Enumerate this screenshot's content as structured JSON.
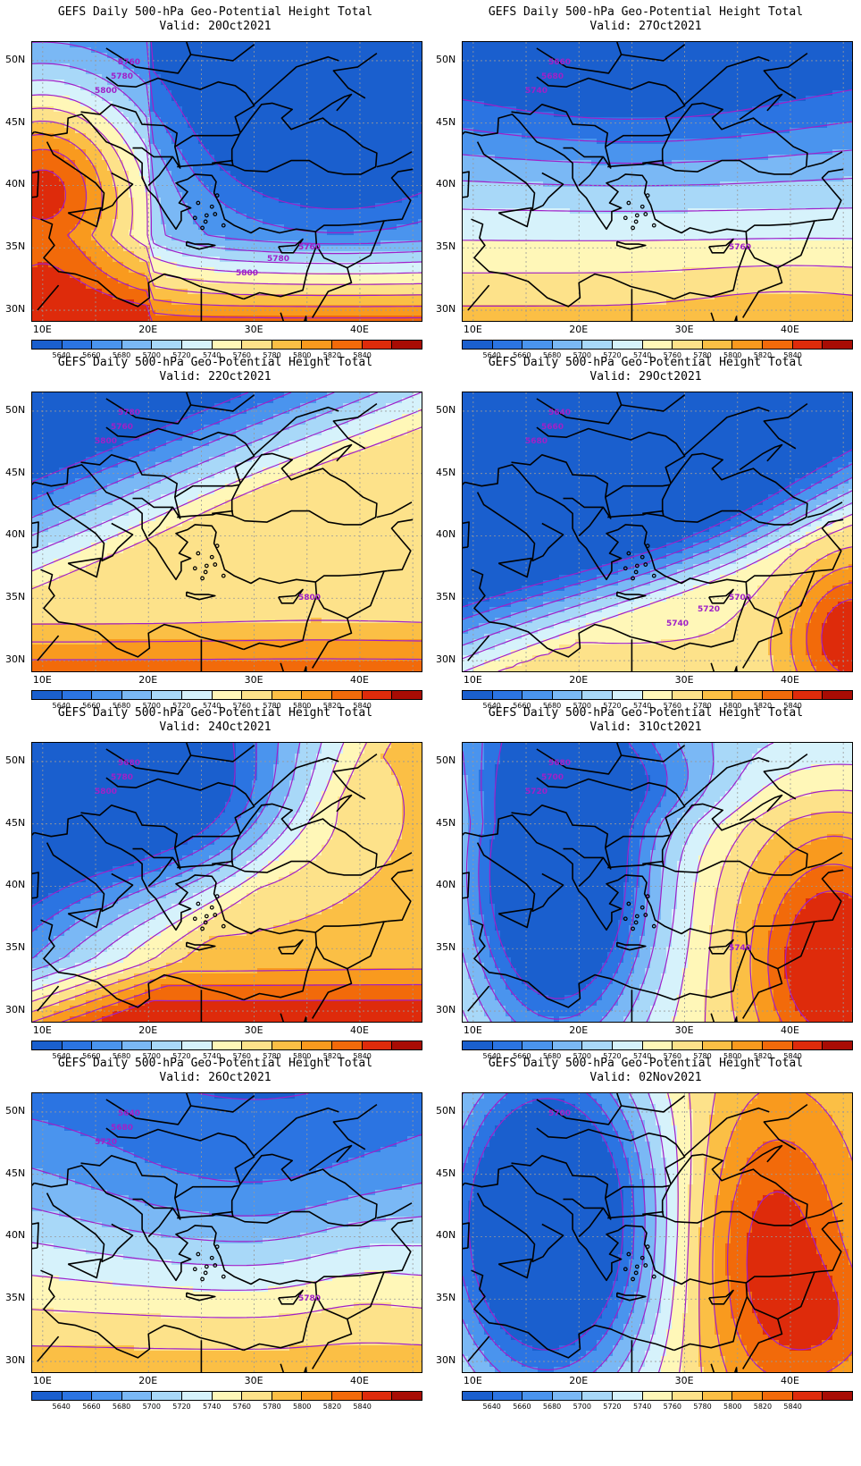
{
  "panels": [
    {
      "title": "GEFS Daily 500-hPa Geo-Potential Height Total",
      "valid": "Valid: 20Oct2021",
      "contour_labels": [
        "5760",
        "5780",
        "5800",
        "5760",
        "5780",
        "5800"
      ],
      "pattern": "ridge-west"
    },
    {
      "title": "GEFS Daily 500-hPa Geo-Potential Height Total",
      "valid": "Valid: 27Oct2021",
      "contour_labels": [
        "5660",
        "5680",
        "5740",
        "5760"
      ],
      "pattern": "trough-north"
    },
    {
      "title": "GEFS Daily 500-hPa Geo-Potential Height Total",
      "valid": "Valid: 22Oct2021",
      "contour_labels": [
        "5780",
        "5760",
        "5800",
        "5800"
      ],
      "pattern": "ridge-broad"
    },
    {
      "title": "GEFS Daily 500-hPa Geo-Potential Height Total",
      "valid": "Valid: 29Oct2021",
      "contour_labels": [
        "5640",
        "5660",
        "5680",
        "5700",
        "5720",
        "5740"
      ],
      "pattern": "trough-deep"
    },
    {
      "title": "GEFS Daily 500-hPa Geo-Potential Height Total",
      "valid": "Valid: 24Oct2021",
      "contour_labels": [
        "5680",
        "5780",
        "5800"
      ],
      "pattern": "trough-diagonal"
    },
    {
      "title": "GEFS Daily 500-hPa Geo-Potential Height Total",
      "valid": "Valid: 31Oct2021",
      "contour_labels": [
        "5680",
        "5700",
        "5720",
        "5740"
      ],
      "pattern": "cutoff-low-ridge-east"
    },
    {
      "title": "GEFS Daily 500-hPa Geo-Potential Height Total",
      "valid": "Valid: 26Oct2021",
      "contour_labels": [
        "5640",
        "5680",
        "5720",
        "5780"
      ],
      "pattern": "trough-wide"
    },
    {
      "title": "GEFS Daily 500-hPa Geo-Potential Height Total",
      "valid": "Valid: 02Nov2021",
      "contour_labels": [
        "5700"
      ],
      "pattern": "cutoff-low-ridge-east-strong"
    }
  ],
  "axes": {
    "lat_labels": [
      "50N",
      "45N",
      "40N",
      "35N",
      "30N"
    ],
    "lon_labels": [
      "10E",
      "20E",
      "30E",
      "40E"
    ]
  },
  "colorbar": {
    "labels": [
      "5640",
      "5660",
      "5680",
      "5700",
      "5720",
      "5740",
      "5760",
      "5780",
      "5800",
      "5820",
      "5840"
    ],
    "colors": [
      "#1a5fce",
      "#2b74e2",
      "#4a94ee",
      "#7ab8f5",
      "#a8d8f8",
      "#d6f2fb",
      "#fff7b8",
      "#fde28a",
      "#fbbf45",
      "#f99a1e",
      "#f26a0a",
      "#de2b0b",
      "#a80c04"
    ]
  },
  "contour_color": "#a020c8",
  "coast_color": "#000000"
}
